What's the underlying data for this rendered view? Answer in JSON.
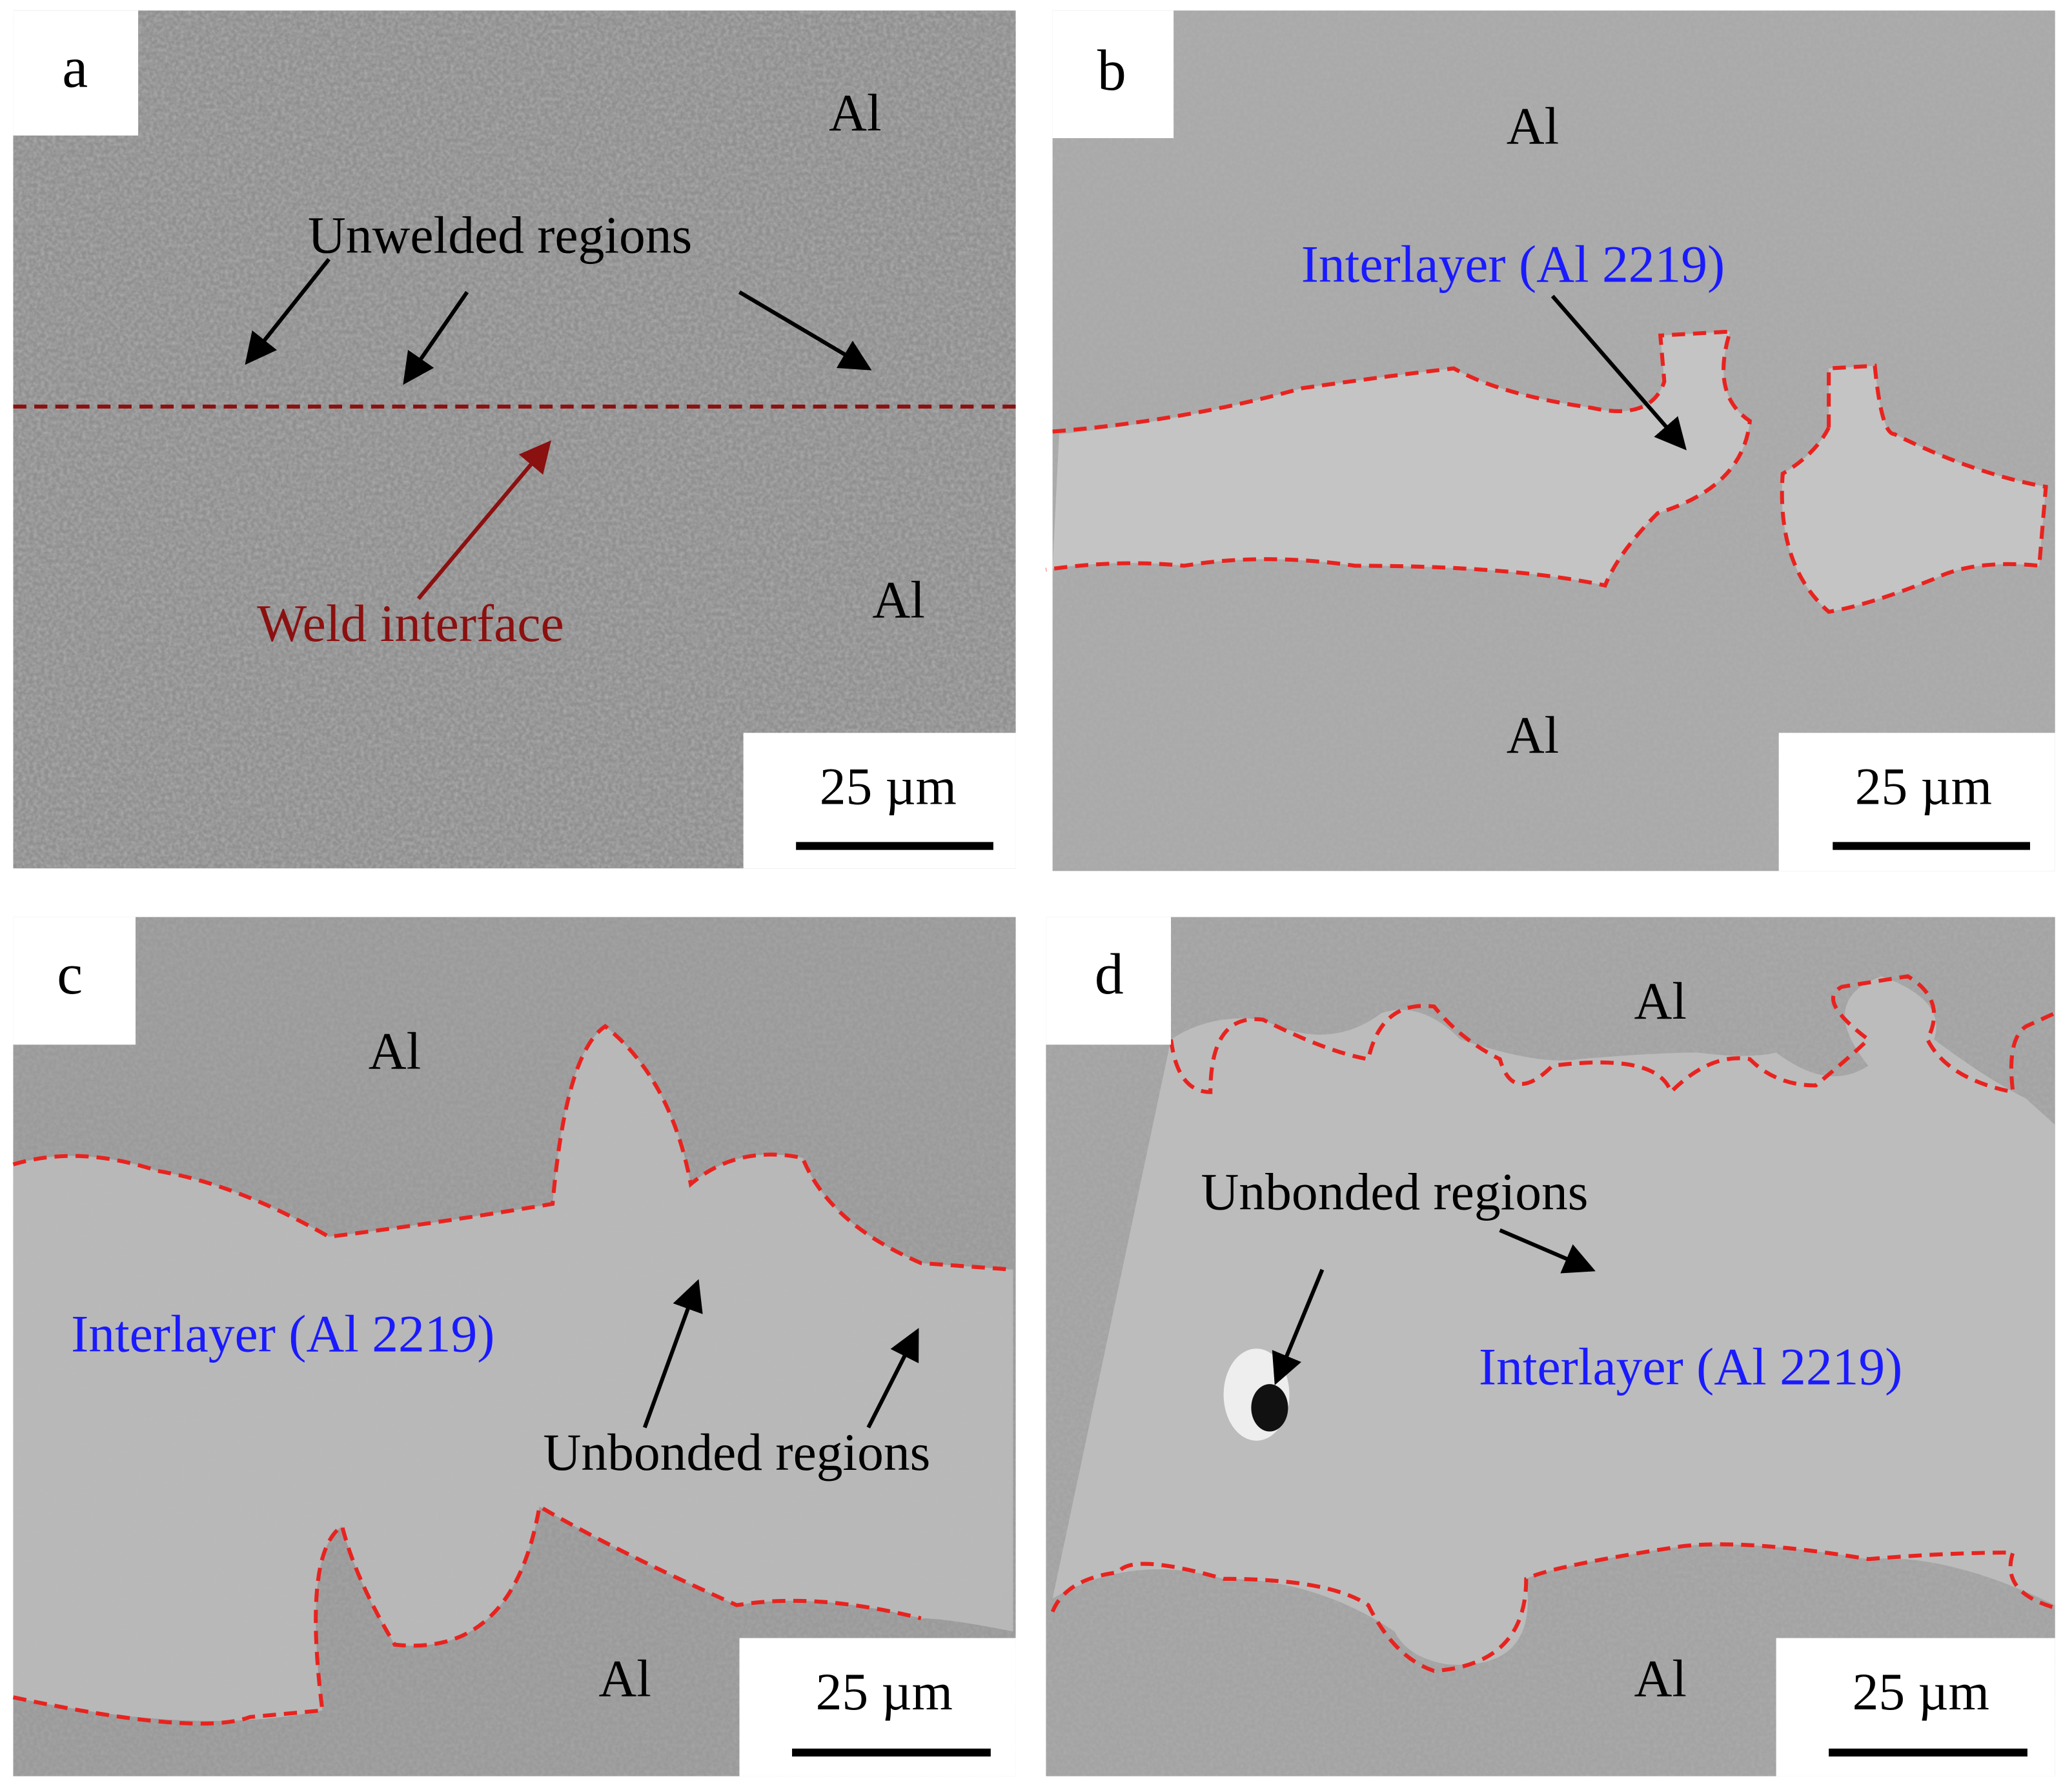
{
  "panels": [
    {
      "label": "a",
      "annotations": [
        "Al",
        "Unwelded regions",
        "Weld interface",
        "Al"
      ],
      "scale_bar": "25 µm"
    },
    {
      "label": "b",
      "annotations": [
        "Al",
        "Interlayer (Al 2219)",
        "Al"
      ],
      "scale_bar": "25 µm"
    },
    {
      "label": "c",
      "annotations": [
        "Al",
        "Interlayer (Al 2219)",
        "Unbonded regions",
        "Al"
      ],
      "scale_bar": "25 µm"
    },
    {
      "label": "d",
      "annotations": [
        "Al",
        "Unbonded regions",
        "Interlayer (Al 2219)",
        "Al"
      ],
      "scale_bar": "25 µm"
    }
  ]
}
